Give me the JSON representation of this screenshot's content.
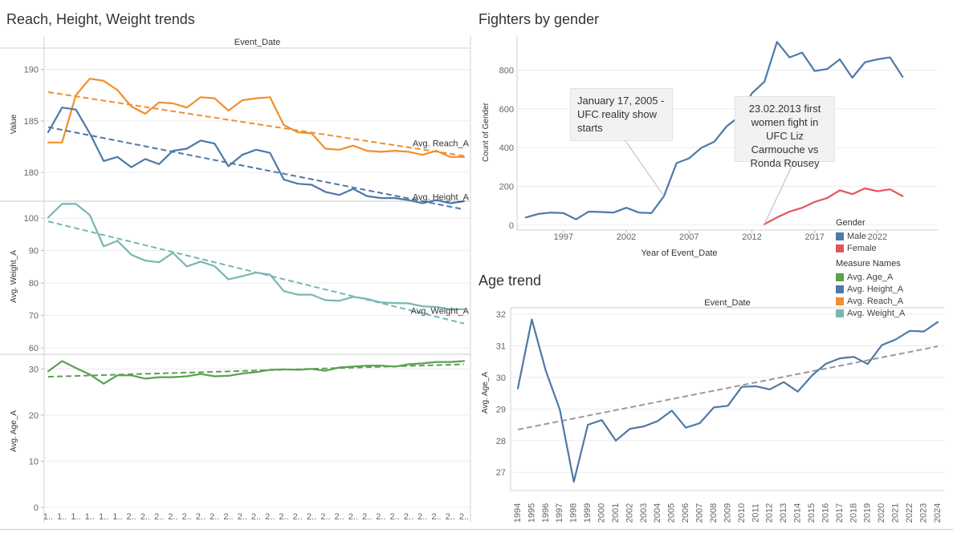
{
  "left_title": "Reach, Height, Weight trends",
  "gender_title": "Fighters by gender",
  "age_title": "Age trend",
  "colors": {
    "reach": "#f28e2b",
    "height": "#4e79a7",
    "weight": "#76b7b2",
    "age": "#59a14f",
    "male": "#4e79a7",
    "female": "#e15759",
    "trend_gray": "#9a9a9a",
    "grid": "#ececec",
    "axis_text": "#666666"
  },
  "left_header": "Event_Date",
  "left_x_tick": "2..",
  "left_x_first_tick": "1..",
  "annotations": {
    "gender_2005": "January 17, 2005 - UFC reality show starts",
    "gender_2013": "23.02.2013 first women fight in UFC Liz Carmouche vs Ronda Rousey"
  },
  "legend": {
    "gender_title": "Gender",
    "gender_items": [
      {
        "label": "Male",
        "color": "#4e79a7"
      },
      {
        "label": "Female",
        "color": "#e15759"
      }
    ],
    "measure_title": "Measure Names",
    "measure_items": [
      {
        "label": "Avg. Age_A",
        "color": "#59a14f"
      },
      {
        "label": "Avg. Height_A",
        "color": "#4e79a7"
      },
      {
        "label": "Avg. Reach_A",
        "color": "#f28e2b"
      },
      {
        "label": "Avg. Weight_A",
        "color": "#76b7b2"
      }
    ]
  },
  "chart_data": [
    {
      "type": "line",
      "title": "Reach, Height, Weight trends",
      "header": "Event_Date",
      "ylabel": "Value",
      "ylim": [
        177.2,
        192
      ],
      "yticks": [
        180,
        185,
        190
      ],
      "x_count": 31,
      "series": [
        {
          "name": "Avg. Reach_A",
          "values": [
            182.9,
            182.9,
            187.5,
            189.1,
            188.9,
            188,
            186.4,
            185.7,
            186.8,
            186.7,
            186.3,
            187.3,
            187.2,
            186,
            187,
            187.2,
            187.3,
            184.6,
            183.9,
            183.8,
            182.3,
            182.2,
            182.6,
            182.1,
            182,
            182.1,
            182,
            181.7,
            182.1,
            181.5,
            181.5
          ],
          "trend": [
            187.8,
            181.6
          ],
          "trend_label": "Avg. Reach_A"
        },
        {
          "name": "Avg. Height_A",
          "values": [
            183.9,
            186.3,
            186.1,
            183.8,
            181.1,
            181.5,
            180.5,
            181.3,
            180.8,
            182.1,
            182.3,
            183.1,
            182.8,
            180.6,
            181.7,
            182.2,
            181.9,
            179.3,
            178.9,
            178.8,
            178.1,
            177.8,
            178.4,
            177.7,
            177.5,
            177.5,
            177.3,
            177,
            177.3,
            177,
            177.2
          ],
          "trend": [
            184.4,
            176.4
          ],
          "trend_label": "Avg. Height_A"
        }
      ]
    },
    {
      "type": "line",
      "ylabel": "Avg. Weight_A",
      "ylim": [
        58,
        105
      ],
      "yticks": [
        60,
        70,
        80,
        90,
        100
      ],
      "series": [
        {
          "name": "Avg. Weight_A",
          "values": [
            100.2,
            104.4,
            104.4,
            101,
            91.3,
            93,
            88.7,
            86.9,
            86.4,
            89.3,
            85.1,
            86.6,
            85.2,
            81.1,
            82.1,
            83.2,
            82.6,
            77.5,
            76.4,
            76.4,
            74.7,
            74.5,
            75.7,
            75.1,
            74,
            73.8,
            73.7,
            72.8,
            72.6,
            71.9,
            71.9
          ],
          "trend": [
            99,
            67.5
          ],
          "trend_label": "Avg. Weight_A"
        }
      ]
    },
    {
      "type": "line",
      "ylabel": "Avg. Age_A",
      "ylim": [
        0,
        33
      ],
      "yticks": [
        0,
        10,
        20,
        30
      ],
      "series": [
        {
          "name": "Avg. Age_A",
          "values": [
            29.5,
            31.7,
            30.2,
            28.8,
            26.8,
            28.6,
            28.6,
            27.9,
            28.2,
            28.2,
            28.4,
            28.9,
            28.4,
            28.5,
            29,
            29.3,
            29.8,
            29.9,
            29.8,
            30,
            29.6,
            30.3,
            30.5,
            30.7,
            30.7,
            30.5,
            31,
            31.2,
            31.5,
            31.5,
            31.7
          ],
          "trend": [
            28.3,
            31
          ]
        }
      ]
    },
    {
      "type": "line",
      "title": "Fighters by gender",
      "xlabel": "Year of Event_Date",
      "ylabel": "Count of Gender",
      "xlim": [
        1993.3,
        2026.8
      ],
      "ylim": [
        -25,
        975
      ],
      "xticks": [
        1997,
        2002,
        2007,
        2012,
        2017,
        2022
      ],
      "yticks": [
        0,
        200,
        400,
        600,
        800
      ],
      "series": [
        {
          "name": "Male",
          "x": [
            1994,
            1995,
            1996,
            1997,
            1998,
            1999,
            2000,
            2001,
            2002,
            2003,
            2004,
            2005,
            2006,
            2007,
            2008,
            2009,
            2010,
            2011,
            2012,
            2013,
            2014,
            2015,
            2016,
            2017,
            2018,
            2019,
            2020,
            2021,
            2022,
            2023,
            2024
          ],
          "values": [
            40,
            58,
            65,
            62,
            30,
            70,
            68,
            65,
            90,
            65,
            62,
            150,
            320,
            345,
            400,
            430,
            510,
            560,
            680,
            740,
            945,
            865,
            890,
            795,
            805,
            855,
            760,
            840,
            855,
            865,
            765
          ]
        },
        {
          "name": "Female",
          "x": [
            2013,
            2014,
            2015,
            2016,
            2017,
            2018,
            2019,
            2020,
            2021,
            2022,
            2023,
            2024
          ],
          "values": [
            5,
            40,
            70,
            90,
            120,
            140,
            180,
            160,
            190,
            175,
            185,
            150
          ]
        }
      ]
    },
    {
      "type": "line",
      "title": "Age trend",
      "header": "Event_Date",
      "ylabel": "Avg. Age_A",
      "ylim": [
        26.6,
        32.2
      ],
      "yticks": [
        27,
        28,
        29,
        30,
        31,
        32
      ],
      "categories": [
        "1994",
        "1995",
        "1996",
        "1997",
        "1998",
        "1999",
        "2000",
        "2001",
        "2002",
        "2003",
        "2004",
        "2005",
        "2006",
        "2007",
        "2008",
        "2009",
        "2010",
        "2011",
        "2012",
        "2013",
        "2014",
        "2015",
        "2016",
        "2017",
        "2018",
        "2019",
        "2020",
        "2021",
        "2022",
        "2023",
        "2024"
      ],
      "series": [
        {
          "name": "Avg. Age_A",
          "values": [
            29.65,
            31.83,
            30.2,
            28.98,
            26.7,
            28.5,
            28.65,
            28,
            28.37,
            28.45,
            28.62,
            28.95,
            28.41,
            28.55,
            29.05,
            29.1,
            29.7,
            29.72,
            29.62,
            29.85,
            29.55,
            30.05,
            30.43,
            30.6,
            30.65,
            30.42,
            31.02,
            31.2,
            31.47,
            31.45,
            31.75
          ]
        }
      ],
      "trend": [
        28.35,
        30.98
      ]
    }
  ]
}
